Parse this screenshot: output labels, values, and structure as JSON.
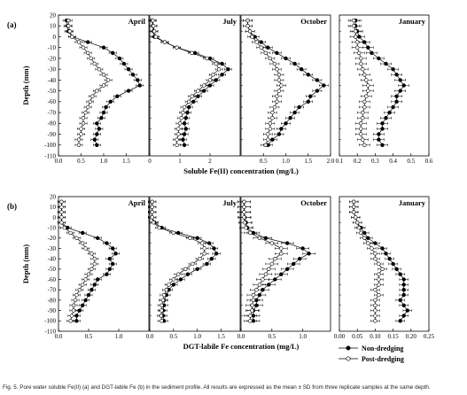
{
  "figure": {
    "caption": "Fig. 5. Pore water soluble Fe(II) (a) and DGT-labile Fe (b) in the sediment profile. All results are expressed as the mean ± SD from three replicate samples at the same depth.",
    "legend": [
      "Non-dredging",
      "Post-dredging"
    ],
    "colors": {
      "non_dredging": "#000000",
      "post_dredging": "#ffffff",
      "axis": "#000000"
    }
  },
  "chart_data": [
    {
      "type": "line",
      "row": "a",
      "panel_letter": "(a)",
      "month": "April",
      "ylabel": "Depth (mm)",
      "xlabel": "Soluble Fe(II) concentration (mg/L)",
      "ylim": [
        -110,
        20
      ],
      "yticks": [
        20,
        10,
        0,
        -10,
        -20,
        -30,
        -40,
        -50,
        -60,
        -70,
        -80,
        -90,
        -100,
        -110
      ],
      "xlim": [
        0,
        2.0
      ],
      "xticks": [
        0,
        0.5,
        1.0,
        1.5
      ],
      "xticklabels": [
        "0.0",
        "0.5",
        "1.0",
        "1.5"
      ],
      "depth": [
        15,
        10,
        5,
        0,
        -5,
        -10,
        -15,
        -20,
        -25,
        -30,
        -35,
        -40,
        -45,
        -50,
        -55,
        -60,
        -65,
        -70,
        -75,
        -80,
        -85,
        -90,
        -95,
        -100
      ],
      "series": [
        {
          "name": "Non-dredging",
          "marker": "filled",
          "values": [
            0.18,
            0.2,
            0.22,
            0.3,
            0.65,
            1.0,
            1.2,
            1.35,
            1.45,
            1.55,
            1.65,
            1.75,
            1.8,
            1.55,
            1.3,
            1.15,
            1.05,
            1.0,
            0.95,
            0.85,
            0.9,
            0.85,
            0.8,
            0.85
          ],
          "err": 0.08
        },
        {
          "name": "Post-dredging",
          "marker": "open",
          "values": [
            0.22,
            0.22,
            0.25,
            0.3,
            0.45,
            0.55,
            0.65,
            0.72,
            0.8,
            0.9,
            1.0,
            1.1,
            1.0,
            0.85,
            0.75,
            0.7,
            0.65,
            0.6,
            0.55,
            0.55,
            0.5,
            0.5,
            0.45,
            0.45
          ],
          "err": 0.08
        }
      ]
    },
    {
      "type": "line",
      "row": "a",
      "month": "July",
      "xlim": [
        0,
        3.0
      ],
      "xticks": [
        0,
        1,
        2
      ],
      "xticklabels": [
        "0",
        "1",
        "2"
      ],
      "depth": [
        15,
        10,
        5,
        0,
        -5,
        -10,
        -15,
        -20,
        -25,
        -30,
        -35,
        -40,
        -45,
        -50,
        -55,
        -60,
        -65,
        -70,
        -75,
        -80,
        -85,
        -90,
        -95,
        -100
      ],
      "series": [
        {
          "name": "Non-dredging",
          "marker": "filled",
          "values": [
            0.08,
            0.1,
            0.12,
            0.15,
            0.5,
            0.9,
            1.5,
            2.0,
            2.4,
            2.6,
            2.4,
            2.2,
            2.0,
            1.8,
            1.6,
            1.45,
            1.3,
            1.25,
            1.2,
            1.15,
            1.2,
            1.15,
            1.1,
            1.15
          ],
          "err": 0.12
        },
        {
          "name": "Post-dredging",
          "marker": "open",
          "values": [
            0.1,
            0.12,
            0.15,
            0.2,
            0.5,
            0.9,
            1.4,
            1.9,
            2.2,
            2.3,
            2.1,
            2.0,
            1.8,
            1.6,
            1.4,
            1.3,
            1.15,
            1.1,
            1.05,
            1.0,
            0.95,
            0.95,
            0.9,
            0.9
          ],
          "err": 0.12
        }
      ]
    },
    {
      "type": "line",
      "row": "a",
      "month": "October",
      "xlim": [
        0,
        2.0
      ],
      "xticks": [
        0.5,
        1.0,
        1.5,
        2.0
      ],
      "xticklabels": [
        "0.5",
        "1.0",
        "1.5",
        "2.0"
      ],
      "depth": [
        15,
        10,
        5,
        0,
        -5,
        -10,
        -15,
        -20,
        -25,
        -30,
        -35,
        -40,
        -45,
        -50,
        -55,
        -60,
        -65,
        -70,
        -75,
        -80,
        -85,
        -90,
        -95,
        -100
      ],
      "series": [
        {
          "name": "Non-dredging",
          "marker": "filled",
          "values": [
            0.15,
            0.15,
            0.2,
            0.3,
            0.45,
            0.6,
            0.8,
            1.0,
            1.2,
            1.35,
            1.5,
            1.7,
            1.85,
            1.7,
            1.55,
            1.5,
            1.3,
            1.2,
            1.1,
            1.0,
            0.9,
            0.85,
            0.7,
            0.6
          ],
          "err": 0.1
        },
        {
          "name": "Post-dredging",
          "marker": "open",
          "values": [
            0.15,
            0.15,
            0.2,
            0.25,
            0.35,
            0.45,
            0.55,
            0.65,
            0.75,
            0.8,
            0.85,
            0.85,
            0.9,
            0.85,
            0.8,
            0.8,
            0.75,
            0.7,
            0.7,
            0.65,
            0.65,
            0.6,
            0.6,
            0.55
          ],
          "err": 0.1
        }
      ]
    },
    {
      "type": "line",
      "row": "a",
      "month": "January",
      "xlim": [
        0.1,
        0.6
      ],
      "xticks": [
        0.1,
        0.2,
        0.3,
        0.4,
        0.5,
        0.6
      ],
      "xticklabels": [
        "0.1",
        "0.2",
        "0.3",
        "0.4",
        "0.5",
        "0.6"
      ],
      "depth": [
        15,
        10,
        5,
        0,
        -5,
        -10,
        -15,
        -20,
        -25,
        -30,
        -35,
        -40,
        -45,
        -50,
        -55,
        -60,
        -65,
        -70,
        -75,
        -80,
        -85,
        -90,
        -95,
        -100
      ],
      "series": [
        {
          "name": "Non-dredging",
          "marker": "filled",
          "values": [
            0.19,
            0.19,
            0.2,
            0.21,
            0.24,
            0.26,
            0.28,
            0.32,
            0.36,
            0.4,
            0.42,
            0.44,
            0.46,
            0.44,
            0.42,
            0.42,
            0.4,
            0.38,
            0.36,
            0.34,
            0.34,
            0.32,
            0.32,
            0.34
          ],
          "err": 0.03
        },
        {
          "name": "Post-dredging",
          "marker": "open",
          "values": [
            0.18,
            0.18,
            0.19,
            0.19,
            0.2,
            0.2,
            0.21,
            0.22,
            0.22,
            0.23,
            0.24,
            0.25,
            0.26,
            0.26,
            0.25,
            0.24,
            0.24,
            0.23,
            0.23,
            0.22,
            0.22,
            0.22,
            0.23,
            0.24
          ],
          "err": 0.03
        }
      ]
    },
    {
      "type": "line",
      "row": "b",
      "panel_letter": "(b)",
      "month": "April",
      "ylabel": "Depth (mm)",
      "xlabel": "DGT-labile Fe concentration (mg/L)",
      "ylim": [
        -110,
        20
      ],
      "yticks": [
        20,
        10,
        0,
        -10,
        -20,
        -30,
        -40,
        -50,
        -60,
        -70,
        -80,
        -90,
        -100,
        -110
      ],
      "xlim": [
        0,
        1.5
      ],
      "xticks": [
        0,
        0.5,
        1.0
      ],
      "xticklabels": [
        "0.0",
        "0.5",
        "1.0"
      ],
      "depth": [
        15,
        10,
        5,
        0,
        -5,
        -10,
        -15,
        -20,
        -25,
        -30,
        -35,
        -40,
        -45,
        -50,
        -55,
        -60,
        -65,
        -70,
        -75,
        -80,
        -85,
        -90,
        -95,
        -100
      ],
      "series": [
        {
          "name": "Non-dredging",
          "marker": "filled",
          "values": [
            0.05,
            0.05,
            0.05,
            0.05,
            0.05,
            0.15,
            0.4,
            0.65,
            0.8,
            0.9,
            0.95,
            0.85,
            0.9,
            0.85,
            0.8,
            0.65,
            0.6,
            0.55,
            0.5,
            0.45,
            0.4,
            0.35,
            0.3,
            0.3
          ],
          "err": 0.06
        },
        {
          "name": "Post-dredging",
          "marker": "open",
          "values": [
            0.05,
            0.05,
            0.05,
            0.05,
            0.05,
            0.1,
            0.2,
            0.3,
            0.4,
            0.45,
            0.55,
            0.6,
            0.6,
            0.55,
            0.5,
            0.45,
            0.4,
            0.35,
            0.3,
            0.28,
            0.25,
            0.25,
            0.22,
            0.2
          ],
          "err": 0.06
        }
      ]
    },
    {
      "type": "line",
      "row": "b",
      "month": "July",
      "xlim": [
        0,
        1.9
      ],
      "xticks": [
        0,
        0.5,
        1.0,
        1.5
      ],
      "xticklabels": [
        "0.0",
        "0.5",
        "1.0",
        "1.5"
      ],
      "depth": [
        15,
        10,
        5,
        0,
        -5,
        -10,
        -15,
        -20,
        -25,
        -30,
        -35,
        -40,
        -45,
        -50,
        -55,
        -60,
        -65,
        -70,
        -75,
        -80,
        -85,
        -90,
        -95,
        -100
      ],
      "series": [
        {
          "name": "Non-dredging",
          "marker": "filled",
          "values": [
            0.05,
            0.05,
            0.05,
            0.05,
            0.1,
            0.25,
            0.6,
            1.0,
            1.25,
            1.35,
            1.4,
            1.3,
            1.2,
            1.0,
            0.8,
            0.65,
            0.5,
            0.4,
            0.35,
            0.3,
            0.3,
            0.28,
            0.28,
            0.3
          ],
          "err": 0.08
        },
        {
          "name": "Post-dredging",
          "marker": "open",
          "values": [
            0.05,
            0.05,
            0.05,
            0.05,
            0.08,
            0.2,
            0.5,
            0.85,
            1.1,
            1.15,
            1.15,
            1.05,
            0.9,
            0.75,
            0.6,
            0.5,
            0.4,
            0.35,
            0.3,
            0.28,
            0.25,
            0.25,
            0.24,
            0.25
          ],
          "err": 0.08
        }
      ]
    },
    {
      "type": "line",
      "row": "b",
      "month": "October",
      "xlim": [
        0,
        1.45
      ],
      "xticks": [
        0,
        0.5,
        1.0
      ],
      "xticklabels": [
        "0.0",
        "0.5",
        "1.0"
      ],
      "depth": [
        15,
        10,
        5,
        0,
        -5,
        -10,
        -15,
        -20,
        -25,
        -30,
        -35,
        -40,
        -45,
        -50,
        -55,
        -60,
        -65,
        -70,
        -75,
        -80,
        -85,
        -90,
        -95,
        -100
      ],
      "series": [
        {
          "name": "Non-dredging",
          "marker": "filled",
          "values": [
            0.05,
            0.05,
            0.05,
            0.06,
            0.08,
            0.1,
            0.2,
            0.4,
            0.75,
            1.0,
            1.1,
            0.95,
            0.85,
            0.75,
            0.65,
            0.55,
            0.45,
            0.35,
            0.3,
            0.25,
            0.25,
            0.2,
            0.2,
            0.2
          ],
          "err": 0.1
        },
        {
          "name": "Post-dredging",
          "marker": "open",
          "values": [
            0.05,
            0.05,
            0.05,
            0.05,
            0.06,
            0.08,
            0.15,
            0.3,
            0.5,
            0.65,
            0.65,
            0.55,
            0.5,
            0.45,
            0.4,
            0.35,
            0.3,
            0.25,
            0.2,
            0.2,
            0.18,
            0.18,
            0.15,
            0.15
          ],
          "err": 0.1
        }
      ]
    },
    {
      "type": "line",
      "row": "b",
      "month": "January",
      "xlim": [
        0,
        0.25
      ],
      "xticks": [
        0,
        0.05,
        0.1,
        0.15,
        0.2,
        0.25
      ],
      "xticklabels": [
        "0.00",
        "0.05",
        "0.10",
        "0.15",
        "0.20",
        "0.25"
      ],
      "depth": [
        15,
        10,
        5,
        0,
        -5,
        -10,
        -15,
        -20,
        -25,
        -30,
        -35,
        -40,
        -45,
        -50,
        -55,
        -60,
        -65,
        -70,
        -75,
        -80,
        -85,
        -90,
        -95,
        -100
      ],
      "series": [
        {
          "name": "Non-dredging",
          "marker": "filled",
          "values": [
            0.04,
            0.04,
            0.04,
            0.045,
            0.05,
            0.06,
            0.07,
            0.08,
            0.1,
            0.12,
            0.13,
            0.14,
            0.15,
            0.16,
            0.17,
            0.18,
            0.18,
            0.18,
            0.18,
            0.17,
            0.18,
            0.19,
            0.18,
            0.17
          ],
          "err": 0.012
        },
        {
          "name": "Post-dredging",
          "marker": "open",
          "values": [
            0.04,
            0.04,
            0.04,
            0.045,
            0.05,
            0.055,
            0.06,
            0.07,
            0.08,
            0.09,
            0.1,
            0.1,
            0.11,
            0.12,
            0.11,
            0.11,
            0.11,
            0.1,
            0.11,
            0.1,
            0.1,
            0.1,
            0.1,
            0.1
          ],
          "err": 0.012
        }
      ]
    }
  ]
}
